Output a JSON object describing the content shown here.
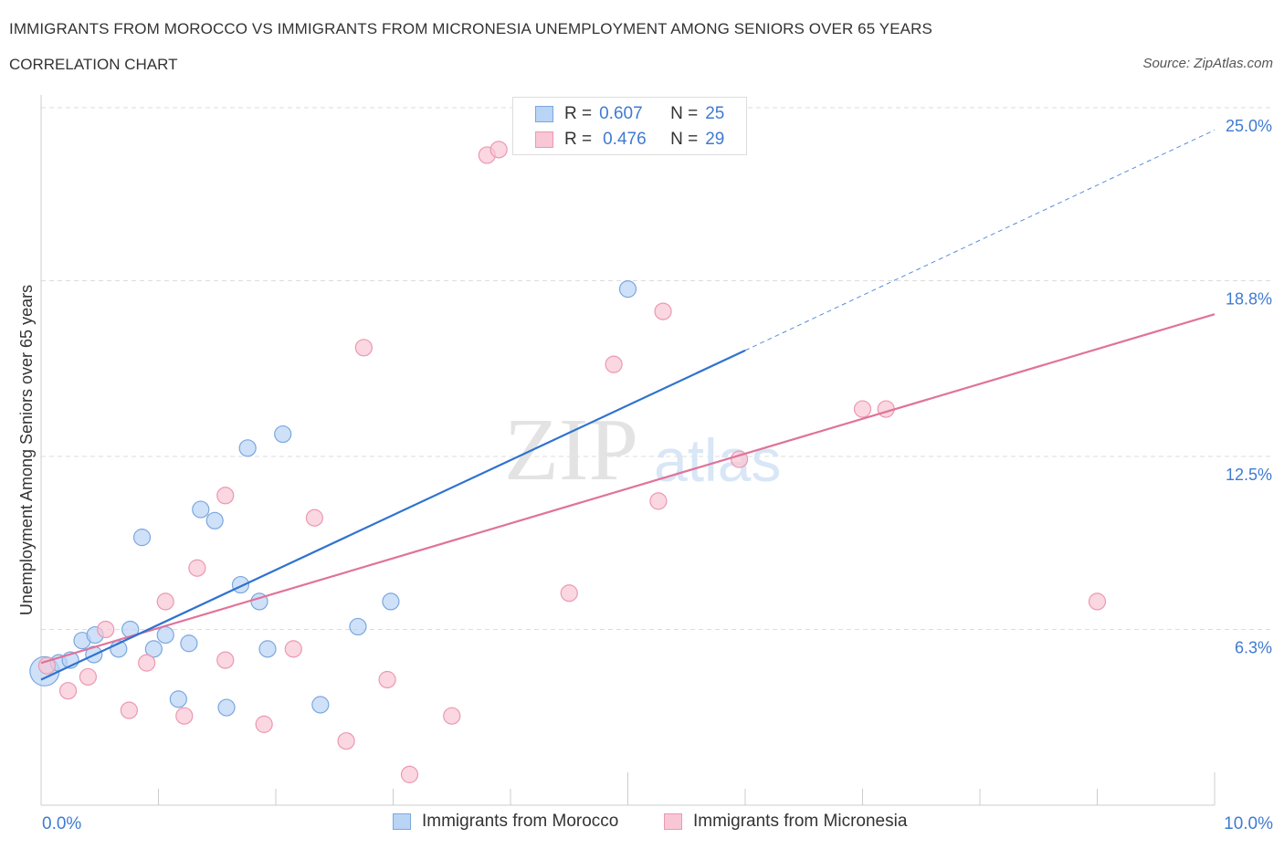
{
  "header": {
    "title": "IMMIGRANTS FROM MOROCCO VS IMMIGRANTS FROM MICRONESIA UNEMPLOYMENT AMONG SENIORS OVER 65 YEARS",
    "subtitle": "CORRELATION CHART",
    "source": "Source: ZipAtlas.com"
  },
  "legend": {
    "rows": [
      {
        "r_label": "R =",
        "r_value": "0.607",
        "n_label": "N =",
        "n_value": "25"
      },
      {
        "r_label": "R =",
        "r_value": "0.476",
        "n_label": "N =",
        "n_value": "29"
      }
    ]
  },
  "bottom_legend": {
    "morocco": "Immigrants from Morocco",
    "micronesia": "Immigrants from Micronesia"
  },
  "colors": {
    "morocco_fill": "#b9d4f5",
    "morocco_stroke": "#7aa7df",
    "morocco_line": "#2f72d0",
    "micronesia_fill": "#f8c6d4",
    "micronesia_stroke": "#ec98b1",
    "micronesia_line": "#e0739a",
    "axis_value": "#3f7bd1",
    "grid": "#dddddd"
  },
  "chart_data": {
    "type": "scatter",
    "title": "IMMIGRANTS FROM MOROCCO VS IMMIGRANTS FROM MICRONESIA UNEMPLOYMENT AMONG SENIORS OVER 65 YEARS",
    "xlabel": "",
    "ylabel": "Unemployment Among Seniors over 65 years",
    "xlim": [
      0,
      10
    ],
    "ylim": [
      0,
      25
    ],
    "x_tick_labels": [
      "0.0%",
      "10.0%"
    ],
    "y_ticks": [
      6.3,
      12.5,
      18.8,
      25.0
    ],
    "y_tick_labels": [
      "6.3%",
      "12.5%",
      "18.8%",
      "25.0%"
    ],
    "grid": true,
    "legend_position": "top-center",
    "watermark": "ZIPatlas",
    "series": [
      {
        "name": "Immigrants from Morocco",
        "R": 0.607,
        "N": 25,
        "points": [
          [
            0.03,
            4.8,
            16
          ],
          [
            0.15,
            5.1,
            9
          ],
          [
            0.25,
            5.2,
            9
          ],
          [
            0.35,
            5.9,
            9
          ],
          [
            0.45,
            5.4,
            9
          ],
          [
            0.46,
            6.1,
            9
          ],
          [
            0.66,
            5.6,
            9
          ],
          [
            0.76,
            6.3,
            9
          ],
          [
            0.86,
            9.6,
            9
          ],
          [
            0.96,
            5.6,
            9
          ],
          [
            1.06,
            6.1,
            9
          ],
          [
            1.17,
            3.8,
            9
          ],
          [
            1.26,
            5.8,
            9
          ],
          [
            1.36,
            10.6,
            9
          ],
          [
            1.48,
            10.2,
            9
          ],
          [
            1.58,
            3.5,
            9
          ],
          [
            1.7,
            7.9,
            9
          ],
          [
            1.76,
            12.8,
            9
          ],
          [
            1.86,
            7.3,
            9
          ],
          [
            1.93,
            5.6,
            9
          ],
          [
            2.06,
            13.3,
            9
          ],
          [
            2.38,
            3.6,
            9
          ],
          [
            2.7,
            6.4,
            9
          ],
          [
            2.98,
            7.3,
            9
          ],
          [
            5.0,
            18.5,
            9
          ]
        ],
        "trend": {
          "x": [
            0.0,
            6.0
          ],
          "y": [
            4.5,
            16.3
          ]
        },
        "trend_extension": {
          "x": [
            6.0,
            10.0
          ],
          "y": [
            16.3,
            24.2
          ]
        }
      },
      {
        "name": "Immigrants from Micronesia",
        "R": 0.476,
        "N": 29,
        "points": [
          [
            0.05,
            5.0,
            9
          ],
          [
            0.23,
            4.1,
            9
          ],
          [
            0.4,
            4.6,
            9
          ],
          [
            0.55,
            6.3,
            9
          ],
          [
            0.75,
            3.4,
            9
          ],
          [
            0.9,
            5.1,
            9
          ],
          [
            1.06,
            7.3,
            9
          ],
          [
            1.22,
            3.2,
            9
          ],
          [
            1.33,
            8.5,
            9
          ],
          [
            1.57,
            5.2,
            9
          ],
          [
            1.57,
            11.1,
            9
          ],
          [
            1.9,
            2.9,
            9
          ],
          [
            2.15,
            5.6,
            9
          ],
          [
            2.33,
            10.3,
            9
          ],
          [
            2.6,
            2.3,
            9
          ],
          [
            2.75,
            16.4,
            9
          ],
          [
            2.95,
            4.5,
            9
          ],
          [
            3.14,
            1.1,
            9
          ],
          [
            3.5,
            3.2,
            9
          ],
          [
            3.8,
            23.3,
            9
          ],
          [
            3.9,
            23.5,
            9
          ],
          [
            4.5,
            7.6,
            9
          ],
          [
            4.88,
            15.8,
            9
          ],
          [
            5.26,
            10.9,
            9
          ],
          [
            5.3,
            17.7,
            9
          ],
          [
            5.95,
            12.4,
            9
          ],
          [
            7.0,
            14.2,
            9
          ],
          [
            7.2,
            14.2,
            9
          ],
          [
            9.0,
            7.3,
            9
          ]
        ],
        "trend": {
          "x": [
            0.0,
            10.0
          ],
          "y": [
            5.1,
            17.6
          ]
        }
      }
    ]
  }
}
